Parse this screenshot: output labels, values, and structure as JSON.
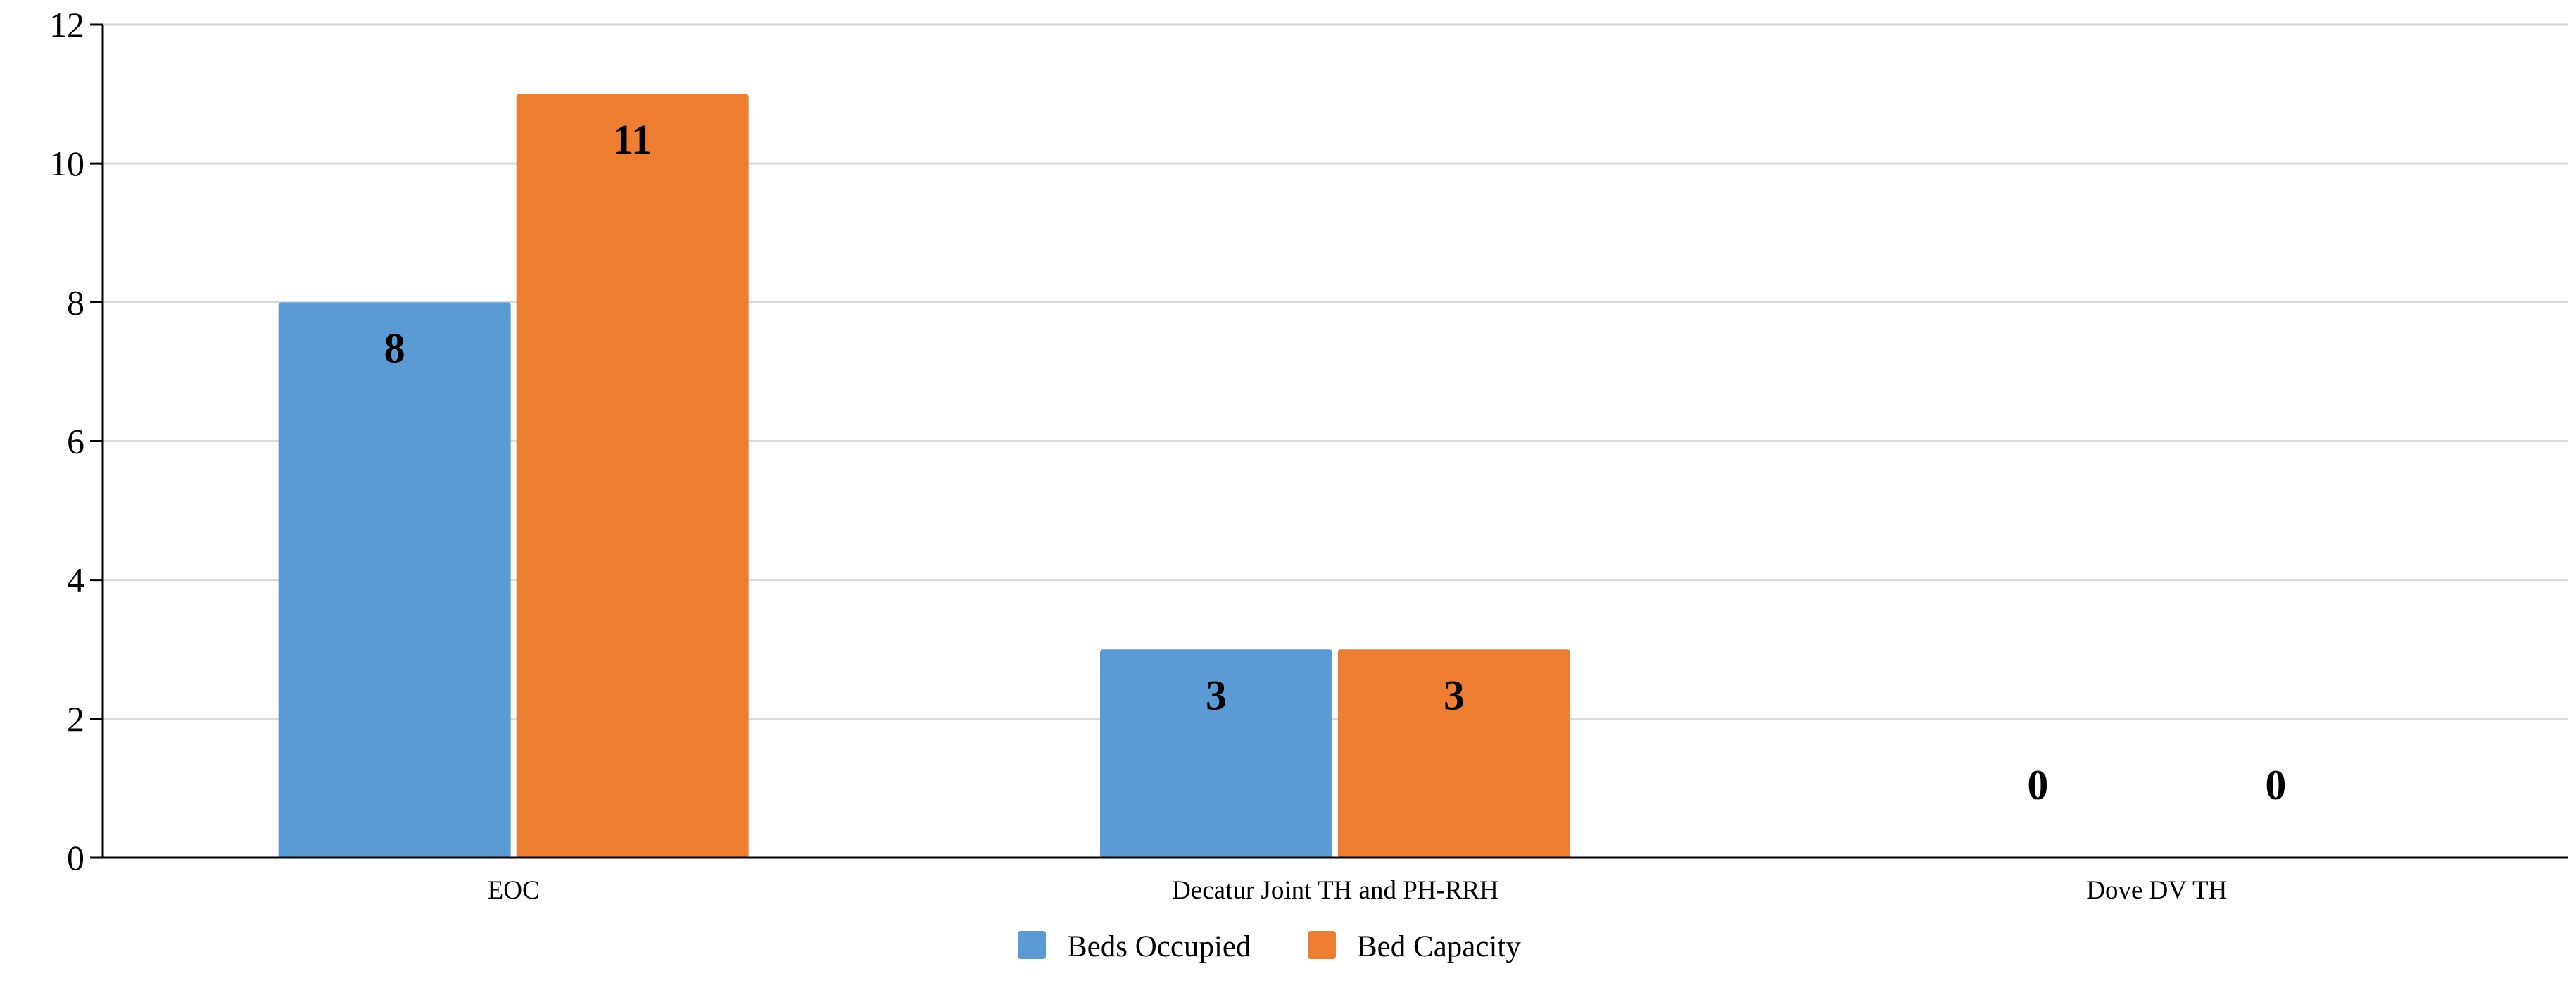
{
  "chart_data": {
    "type": "bar",
    "title": "",
    "xlabel": "",
    "ylabel": "",
    "categories": [
      "EOC",
      "Decatur Joint TH and PH-RRH",
      "Dove DV TH"
    ],
    "series": [
      {
        "name": "Beds Occupied",
        "values": [
          8,
          3,
          0
        ],
        "color": "#5B9BD5"
      },
      {
        "name": "Bed Capacity",
        "values": [
          11,
          3,
          0
        ],
        "color": "#ED7D31"
      }
    ],
    "ylim": [
      0,
      12
    ],
    "yticks": [
      0,
      2,
      4,
      6,
      8,
      10,
      12
    ],
    "grid": true,
    "legend_position": "bottom-center",
    "data_labels": true
  }
}
